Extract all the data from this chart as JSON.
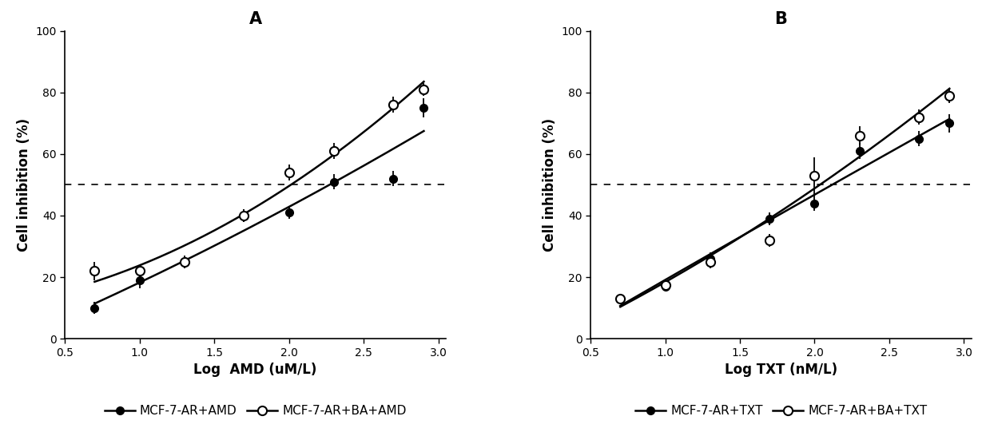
{
  "panel_A": {
    "title": "A",
    "xlabel": "Log  AMD (uM/L)",
    "ylabel": "Cell inhibition (%)",
    "xlim": [
      0.55,
      3.05
    ],
    "ylim": [
      0,
      100
    ],
    "xticks": [
      0.5,
      1.0,
      1.5,
      2.0,
      2.5,
      3.0
    ],
    "xticklabels": [
      "0.5",
      "1.0",
      "1.5",
      "2.0",
      "2.5",
      "3.0"
    ],
    "yticks": [
      0,
      20,
      40,
      60,
      80,
      100
    ],
    "dashed_y": 50,
    "series1": {
      "label": "MCF-7-AR+AMD",
      "x": [
        0.699,
        1.0,
        1.301,
        1.699,
        2.0,
        2.301,
        2.699,
        2.903
      ],
      "y": [
        10.0,
        19.0,
        25.0,
        40.0,
        41.0,
        51.0,
        52.0,
        75.0
      ],
      "yerr": [
        2.0,
        2.5,
        1.5,
        2.0,
        2.0,
        2.5,
        2.5,
        3.0
      ]
    },
    "series2": {
      "label": "MCF-7-AR+BA+AMD",
      "x": [
        0.699,
        1.0,
        1.301,
        1.699,
        2.0,
        2.301,
        2.699,
        2.903
      ],
      "y": [
        22.0,
        22.0,
        25.0,
        40.0,
        54.0,
        61.0,
        76.0,
        81.0
      ],
      "yerr": [
        3.0,
        2.0,
        2.0,
        2.0,
        2.5,
        2.5,
        2.5,
        2.0
      ]
    }
  },
  "panel_B": {
    "title": "B",
    "xlabel": "Log TXT (nM/L)",
    "ylabel": "Cell inhibition (%)",
    "xlim": [
      0.55,
      3.05
    ],
    "ylim": [
      0,
      100
    ],
    "xticks": [
      0.5,
      1.0,
      1.5,
      2.0,
      2.5,
      3.0
    ],
    "xticklabels": [
      "0.5",
      "1.0",
      "1.5",
      "2.0",
      "2.5",
      "3.0"
    ],
    "yticks": [
      0,
      20,
      40,
      60,
      80,
      100
    ],
    "dashed_y": 50,
    "series1": {
      "label": "MCF-7-AR+TXT",
      "x": [
        0.699,
        1.0,
        1.301,
        1.699,
        2.0,
        2.301,
        2.699,
        2.903
      ],
      "y": [
        13.0,
        17.0,
        26.0,
        39.0,
        44.0,
        61.0,
        65.0,
        70.0
      ],
      "yerr": [
        1.5,
        1.5,
        2.0,
        2.0,
        2.5,
        2.5,
        2.5,
        3.0
      ]
    },
    "series2": {
      "label": "MCF-7-AR+BA+TXT",
      "x": [
        0.699,
        1.0,
        1.301,
        1.699,
        2.0,
        2.301,
        2.699,
        2.903
      ],
      "y": [
        13.0,
        17.5,
        25.0,
        32.0,
        53.0,
        66.0,
        72.0,
        79.0
      ],
      "yerr": [
        1.5,
        2.0,
        2.0,
        2.0,
        6.0,
        3.0,
        2.5,
        2.5
      ]
    }
  },
  "legend_A": [
    "MCF-7-AR+AMD",
    "MCF-7-AR+BA+AMD"
  ],
  "legend_B": [
    "MCF-7-AR+TXT",
    "MCF-7-AR+BA+TXT"
  ],
  "background_color": "#ffffff",
  "line_color": "#000000",
  "marker_size": 7,
  "line_width": 1.8,
  "font_size_title": 15,
  "font_size_label": 12,
  "font_size_tick": 10,
  "font_size_legend": 11
}
